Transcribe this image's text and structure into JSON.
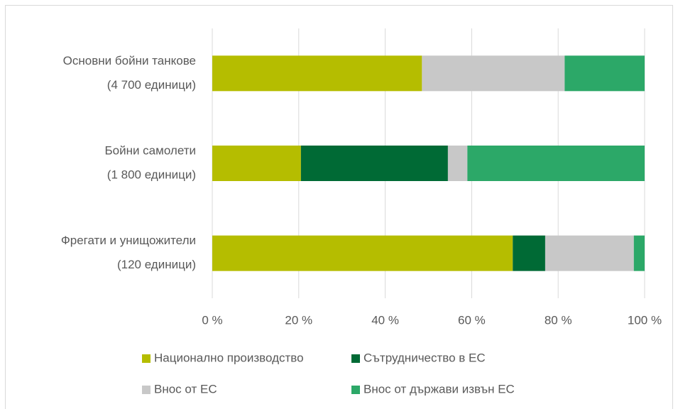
{
  "chart_data": {
    "type": "stacked_barh",
    "categories": [
      [
        "Основни бойни танкове",
        "(4 700 единици)"
      ],
      [
        "Бойни самолети",
        "(1 800 единици)"
      ],
      [
        "Фрегати и унищожители",
        "(120 единици)"
      ]
    ],
    "series": [
      {
        "name": "Национално производство",
        "color": "#b5bd00",
        "values": [
          48.5,
          20.5,
          69.5
        ]
      },
      {
        "name": "Сътрудничество в ЕС",
        "color": "#006a35",
        "values": [
          0,
          34,
          7.5
        ]
      },
      {
        "name": "Внос от ЕС",
        "color": "#c8c8c8",
        "values": [
          33,
          4.5,
          20.5
        ]
      },
      {
        "name": "Внос от държави извън ЕС",
        "color": "#2ca868",
        "values": [
          18.5,
          41,
          2.5
        ]
      }
    ],
    "xlim": [
      0,
      100
    ],
    "xticks": [
      {
        "value": 0,
        "label": "0 %"
      },
      {
        "value": 20,
        "label": "20 %"
      },
      {
        "value": 40,
        "label": "40 %"
      },
      {
        "value": 60,
        "label": "60 %"
      },
      {
        "value": 80,
        "label": "80 %"
      },
      {
        "value": 100,
        "label": "100 %"
      }
    ],
    "grid": true
  }
}
